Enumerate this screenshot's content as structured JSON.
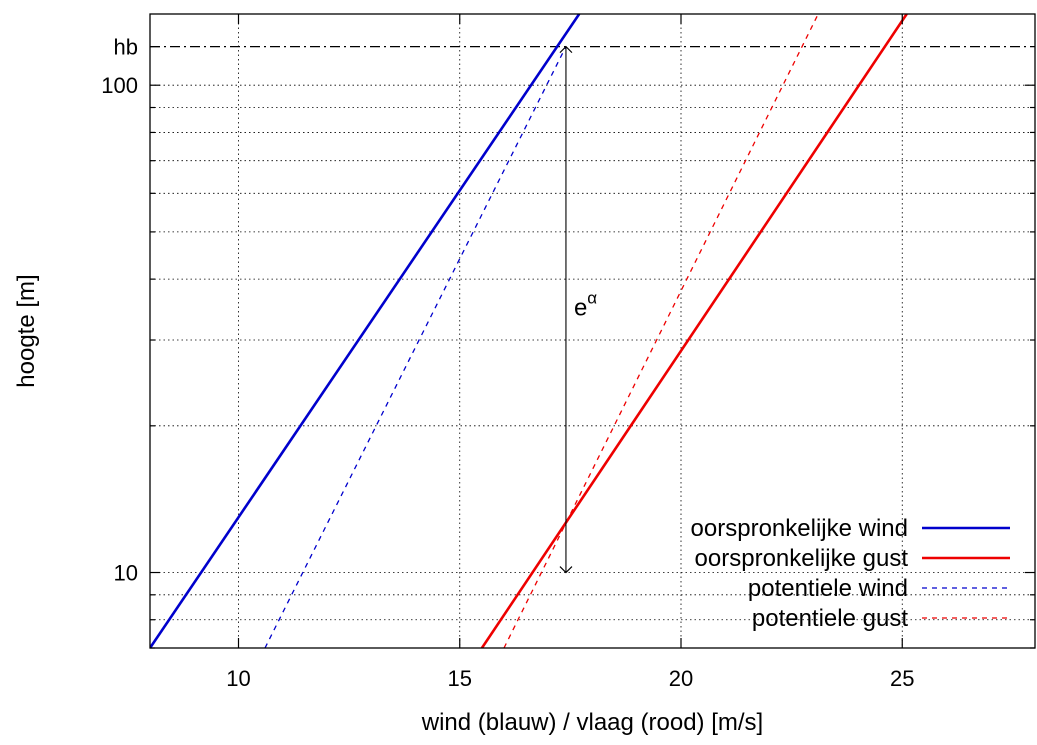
{
  "chart_data": {
    "type": "line",
    "xlabel": "wind (blauw) / vlaag (rood) [m/s]",
    "ylabel": "hoogte [m]",
    "xlim": [
      8,
      28
    ],
    "ylim": [
      7,
      140
    ],
    "yscale": "log",
    "grid": true,
    "legend_position": "bottom-right",
    "xticks": [
      10,
      15,
      20,
      25
    ],
    "yticks_major": [
      10,
      100
    ],
    "yticks_minor": [
      7,
      8,
      9,
      20,
      30,
      40,
      50,
      60,
      70,
      80,
      90
    ],
    "hb_level": 120,
    "hb_label": "hb",
    "annotation": {
      "base": "e",
      "superscript": "α",
      "x": 17.4,
      "y_from": 10,
      "y_to": 120
    },
    "series": [
      {
        "name": "oorspronkelijke wind",
        "color": "#0000cc",
        "dashed": false,
        "x": [
          8.0,
          17.7
        ],
        "y": [
          7.0,
          140.0
        ]
      },
      {
        "name": "oorspronkelijke gust",
        "color": "#ee0000",
        "dashed": false,
        "x": [
          15.5,
          25.1
        ],
        "y": [
          7.0,
          140.0
        ]
      },
      {
        "name": "potentiele wind",
        "color": "#0000cc",
        "dashed": true,
        "x": [
          10.6,
          17.4
        ],
        "y": [
          7.0,
          120.0
        ]
      },
      {
        "name": "potentiele gust",
        "color": "#ee0000",
        "dashed": true,
        "x": [
          16.0,
          23.1
        ],
        "y": [
          7.0,
          140.0
        ]
      }
    ]
  }
}
